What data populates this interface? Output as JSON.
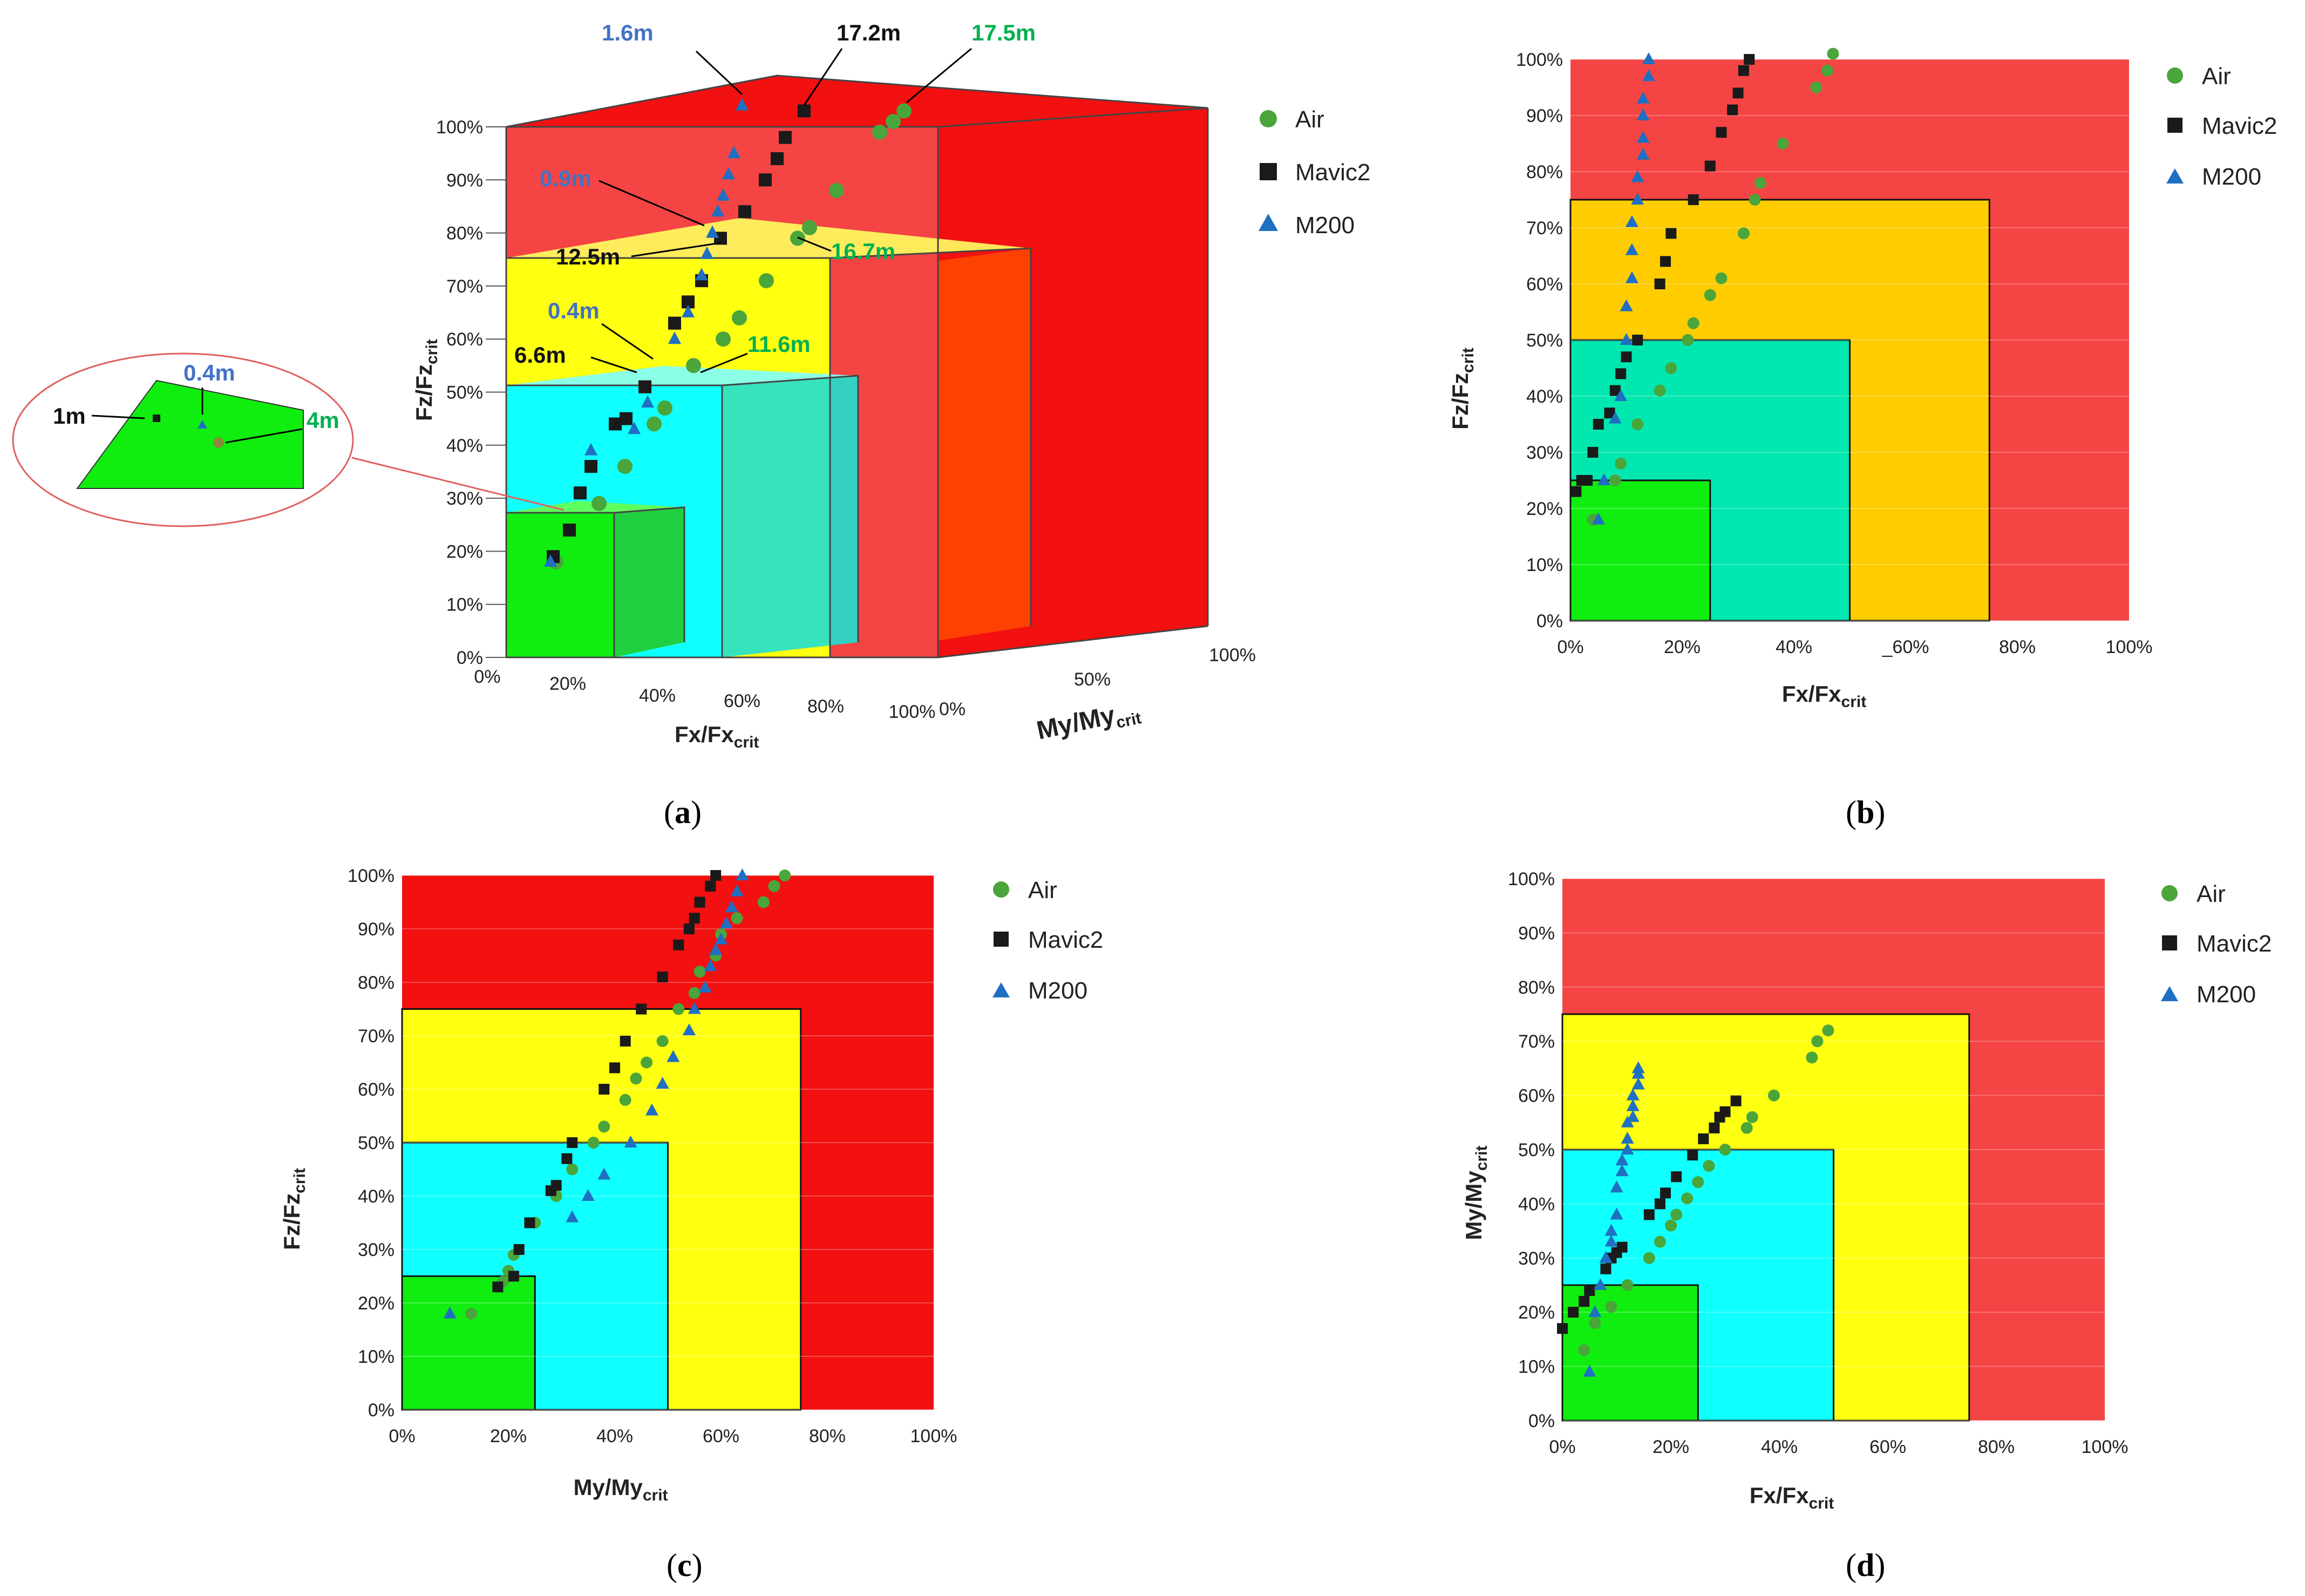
{
  "figure": {
    "panels": [
      {
        "id": "a",
        "label_open": "(",
        "label_letter": "a",
        "label_close": ")"
      },
      {
        "id": "b",
        "label_open": "(",
        "label_letter": "b",
        "label_close": ")"
      },
      {
        "id": "c",
        "label_open": "(",
        "label_letter": "c",
        "label_close": ")"
      },
      {
        "id": "d",
        "label_open": "(",
        "label_letter": "d",
        "label_close": ")"
      }
    ]
  },
  "legend": {
    "air": "Air",
    "mavic2": "Mavic2",
    "m200": "M200"
  },
  "colors": {
    "red": "#f21010",
    "red_light": "#f54444",
    "yellow": "#ffff10",
    "orange": "#ffcc00",
    "cyan": "#10ffff",
    "teal": "#00e8b0",
    "green": "#10ee10",
    "air": "#4aa53a",
    "mavic2": "#1a1a1a",
    "m200": "#1f6fc2",
    "label_blue": "#4472c4",
    "label_green": "#00b050"
  },
  "panel_a": {
    "zlabel_main": "Fz/Fz",
    "zlabel_sub": "crit",
    "xlabel_main": "Fx/Fx",
    "xlabel_sub": "crit",
    "ylabel_main": "My/My",
    "ylabel_sub": "crit",
    "z_ticks": [
      "0%",
      "10%",
      "20%",
      "30%",
      "40%",
      "50%",
      "60%",
      "70%",
      "80%",
      "90%",
      "100%"
    ],
    "x_ticks": [
      "0%",
      "20%",
      "40%",
      "60%",
      "80%",
      "100%"
    ],
    "y_ticks": [
      "0%",
      "50%",
      "100%"
    ],
    "annotations": {
      "a1": "1.6m",
      "a2": "17.2m",
      "a3": "17.5m",
      "a4": "0.9m",
      "a5": "12.5m",
      "a6": "16.7m",
      "a7": "0.4m",
      "a8": "6.6m",
      "a9": "11.6m"
    },
    "inset": {
      "l1": "1m",
      "l2": "0.4m",
      "l3": "4m"
    }
  },
  "chart_data": [
    {
      "type": "scatter",
      "id": "b",
      "xlabel": "Fx/Fxcrit",
      "ylabel": "Fz/Fzcrit",
      "xlim": [
        0,
        100
      ],
      "ylim": [
        0,
        100
      ],
      "x_ticks": [
        "0%",
        "20%",
        "40%",
        "_60%",
        "80%",
        "100%"
      ],
      "y_ticks": [
        "0%",
        "10%",
        "20%",
        "30%",
        "40%",
        "50%",
        "60%",
        "70%",
        "80%",
        "90%",
        "100%"
      ],
      "zones": [
        {
          "limit": 100,
          "color": "red_light"
        },
        {
          "limit": 75,
          "color": "orange"
        },
        {
          "limit": 50,
          "color": "teal"
        },
        {
          "limit": 25,
          "color": "green"
        }
      ],
      "series": [
        {
          "name": "Air",
          "marker": "circle",
          "points": [
            [
              4,
              18
            ],
            [
              8,
              25
            ],
            [
              9,
              28
            ],
            [
              12,
              35
            ],
            [
              16,
              41
            ],
            [
              18,
              45
            ],
            [
              21,
              50
            ],
            [
              22,
              53
            ],
            [
              25,
              58
            ],
            [
              27,
              61
            ],
            [
              31,
              69
            ],
            [
              33,
              75
            ],
            [
              34,
              78
            ],
            [
              38,
              85
            ],
            [
              44,
              95
            ],
            [
              46,
              98
            ],
            [
              47,
              101
            ]
          ]
        },
        {
          "name": "Mavic2",
          "marker": "square",
          "points": [
            [
              1,
              23
            ],
            [
              2,
              25
            ],
            [
              3,
              25
            ],
            [
              4,
              30
            ],
            [
              5,
              35
            ],
            [
              7,
              37
            ],
            [
              8,
              41
            ],
            [
              9,
              44
            ],
            [
              10,
              47
            ],
            [
              12,
              50
            ],
            [
              16,
              60
            ],
            [
              17,
              64
            ],
            [
              18,
              69
            ],
            [
              22,
              75
            ],
            [
              25,
              81
            ],
            [
              27,
              87
            ],
            [
              29,
              91
            ],
            [
              30,
              94
            ],
            [
              31,
              98
            ],
            [
              32,
              100
            ]
          ]
        },
        {
          "name": "M200",
          "marker": "triangle",
          "points": [
            [
              5,
              18
            ],
            [
              6,
              25
            ],
            [
              8,
              36
            ],
            [
              9,
              40
            ],
            [
              10,
              50
            ],
            [
              10,
              56
            ],
            [
              11,
              61
            ],
            [
              11,
              66
            ],
            [
              11,
              71
            ],
            [
              12,
              75
            ],
            [
              12,
              79
            ],
            [
              13,
              83
            ],
            [
              13,
              86
            ],
            [
              13,
              90
            ],
            [
              13,
              93
            ],
            [
              14,
              97
            ],
            [
              14,
              100
            ]
          ]
        }
      ]
    },
    {
      "type": "scatter",
      "id": "c",
      "xlabel": "My/Mycrit",
      "ylabel": "Fz/Fzcrit",
      "xlim": [
        0,
        100
      ],
      "ylim": [
        0,
        100
      ],
      "x_ticks": [
        "0%",
        "20%",
        "40%",
        "60%",
        "80%",
        "100%"
      ],
      "y_ticks": [
        "0%",
        "10%",
        "20%",
        "30%",
        "40%",
        "50%",
        "60%",
        "70%",
        "80%",
        "90%",
        "100%"
      ],
      "zones": [
        {
          "limit": 100,
          "color": "red"
        },
        {
          "limit": 75,
          "color": "yellow"
        },
        {
          "limit": 50,
          "color": "cyan"
        },
        {
          "limit": 25,
          "color": "green"
        }
      ],
      "series": [
        {
          "name": "Air",
          "marker": "circle",
          "points": [
            [
              13,
              18
            ],
            [
              19,
              24
            ],
            [
              20,
              26
            ],
            [
              21,
              29
            ],
            [
              25,
              35
            ],
            [
              29,
              40
            ],
            [
              32,
              45
            ],
            [
              36,
              50
            ],
            [
              38,
              53
            ],
            [
              42,
              58
            ],
            [
              44,
              62
            ],
            [
              46,
              65
            ],
            [
              49,
              69
            ],
            [
              52,
              75
            ],
            [
              55,
              78
            ],
            [
              56,
              82
            ],
            [
              59,
              85
            ],
            [
              60,
              89
            ],
            [
              63,
              92
            ],
            [
              68,
              95
            ],
            [
              70,
              98
            ],
            [
              72,
              100
            ]
          ]
        },
        {
          "name": "Mavic2",
          "marker": "square",
          "points": [
            [
              18,
              23
            ],
            [
              21,
              25
            ],
            [
              22,
              30
            ],
            [
              24,
              35
            ],
            [
              28,
              41
            ],
            [
              29,
              42
            ],
            [
              31,
              47
            ],
            [
              32,
              50
            ],
            [
              38,
              60
            ],
            [
              40,
              64
            ],
            [
              42,
              69
            ],
            [
              45,
              75
            ],
            [
              49,
              81
            ],
            [
              52,
              87
            ],
            [
              54,
              90
            ],
            [
              55,
              92
            ],
            [
              56,
              95
            ],
            [
              58,
              98
            ],
            [
              59,
              100
            ]
          ]
        },
        {
          "name": "M200",
          "marker": "triangle",
          "points": [
            [
              9,
              18
            ],
            [
              32,
              36
            ],
            [
              35,
              40
            ],
            [
              38,
              44
            ],
            [
              43,
              50
            ],
            [
              47,
              56
            ],
            [
              49,
              61
            ],
            [
              51,
              66
            ],
            [
              54,
              71
            ],
            [
              55,
              75
            ],
            [
              57,
              79
            ],
            [
              58,
              83
            ],
            [
              59,
              86
            ],
            [
              60,
              88
            ],
            [
              61,
              91
            ],
            [
              62,
              94
            ],
            [
              63,
              97
            ],
            [
              64,
              100
            ]
          ]
        }
      ]
    },
    {
      "type": "scatter",
      "id": "d",
      "xlabel": "Fx/Fxcrit",
      "ylabel": "My/Mycrit",
      "xlim": [
        0,
        100
      ],
      "ylim": [
        0,
        100
      ],
      "x_ticks": [
        "0%",
        "20%",
        "40%",
        "60%",
        "80%",
        "100%"
      ],
      "y_ticks": [
        "0%",
        "10%",
        "20%",
        "30%",
        "40%",
        "50%",
        "60%",
        "70%",
        "80%",
        "90%",
        "100%"
      ],
      "zones": [
        {
          "limit": 100,
          "color": "red_light"
        },
        {
          "limit": 75,
          "color": "yellow"
        },
        {
          "limit": 50,
          "color": "cyan"
        },
        {
          "limit": 25,
          "color": "green"
        }
      ],
      "series": [
        {
          "name": "Air",
          "marker": "circle",
          "points": [
            [
              4,
              13
            ],
            [
              6,
              18
            ],
            [
              9,
              21
            ],
            [
              12,
              25
            ],
            [
              16,
              30
            ],
            [
              18,
              33
            ],
            [
              20,
              36
            ],
            [
              21,
              38
            ],
            [
              23,
              41
            ],
            [
              25,
              44
            ],
            [
              27,
              47
            ],
            [
              30,
              50
            ],
            [
              34,
              54
            ],
            [
              35,
              56
            ],
            [
              39,
              60
            ],
            [
              46,
              67
            ],
            [
              47,
              70
            ],
            [
              49,
              72
            ]
          ]
        },
        {
          "name": "Mavic2",
          "marker": "square",
          "points": [
            [
              0,
              17
            ],
            [
              2,
              20
            ],
            [
              4,
              22
            ],
            [
              5,
              24
            ],
            [
              8,
              28
            ],
            [
              9,
              30
            ],
            [
              10,
              31
            ],
            [
              11,
              32
            ],
            [
              16,
              38
            ],
            [
              18,
              40
            ],
            [
              19,
              42
            ],
            [
              21,
              45
            ],
            [
              24,
              49
            ],
            [
              26,
              52
            ],
            [
              28,
              54
            ],
            [
              29,
              56
            ],
            [
              30,
              57
            ],
            [
              32,
              59
            ]
          ]
        },
        {
          "name": "M200",
          "marker": "triangle",
          "points": [
            [
              5,
              9
            ],
            [
              6,
              20
            ],
            [
              7,
              25
            ],
            [
              8,
              30
            ],
            [
              9,
              33
            ],
            [
              9,
              35
            ],
            [
              10,
              38
            ],
            [
              10,
              43
            ],
            [
              11,
              46
            ],
            [
              11,
              48
            ],
            [
              12,
              50
            ],
            [
              12,
              52
            ],
            [
              12,
              55
            ],
            [
              13,
              56
            ],
            [
              13,
              58
            ],
            [
              13,
              60
            ],
            [
              14,
              62
            ],
            [
              14,
              64
            ],
            [
              14,
              65
            ]
          ]
        }
      ]
    }
  ]
}
